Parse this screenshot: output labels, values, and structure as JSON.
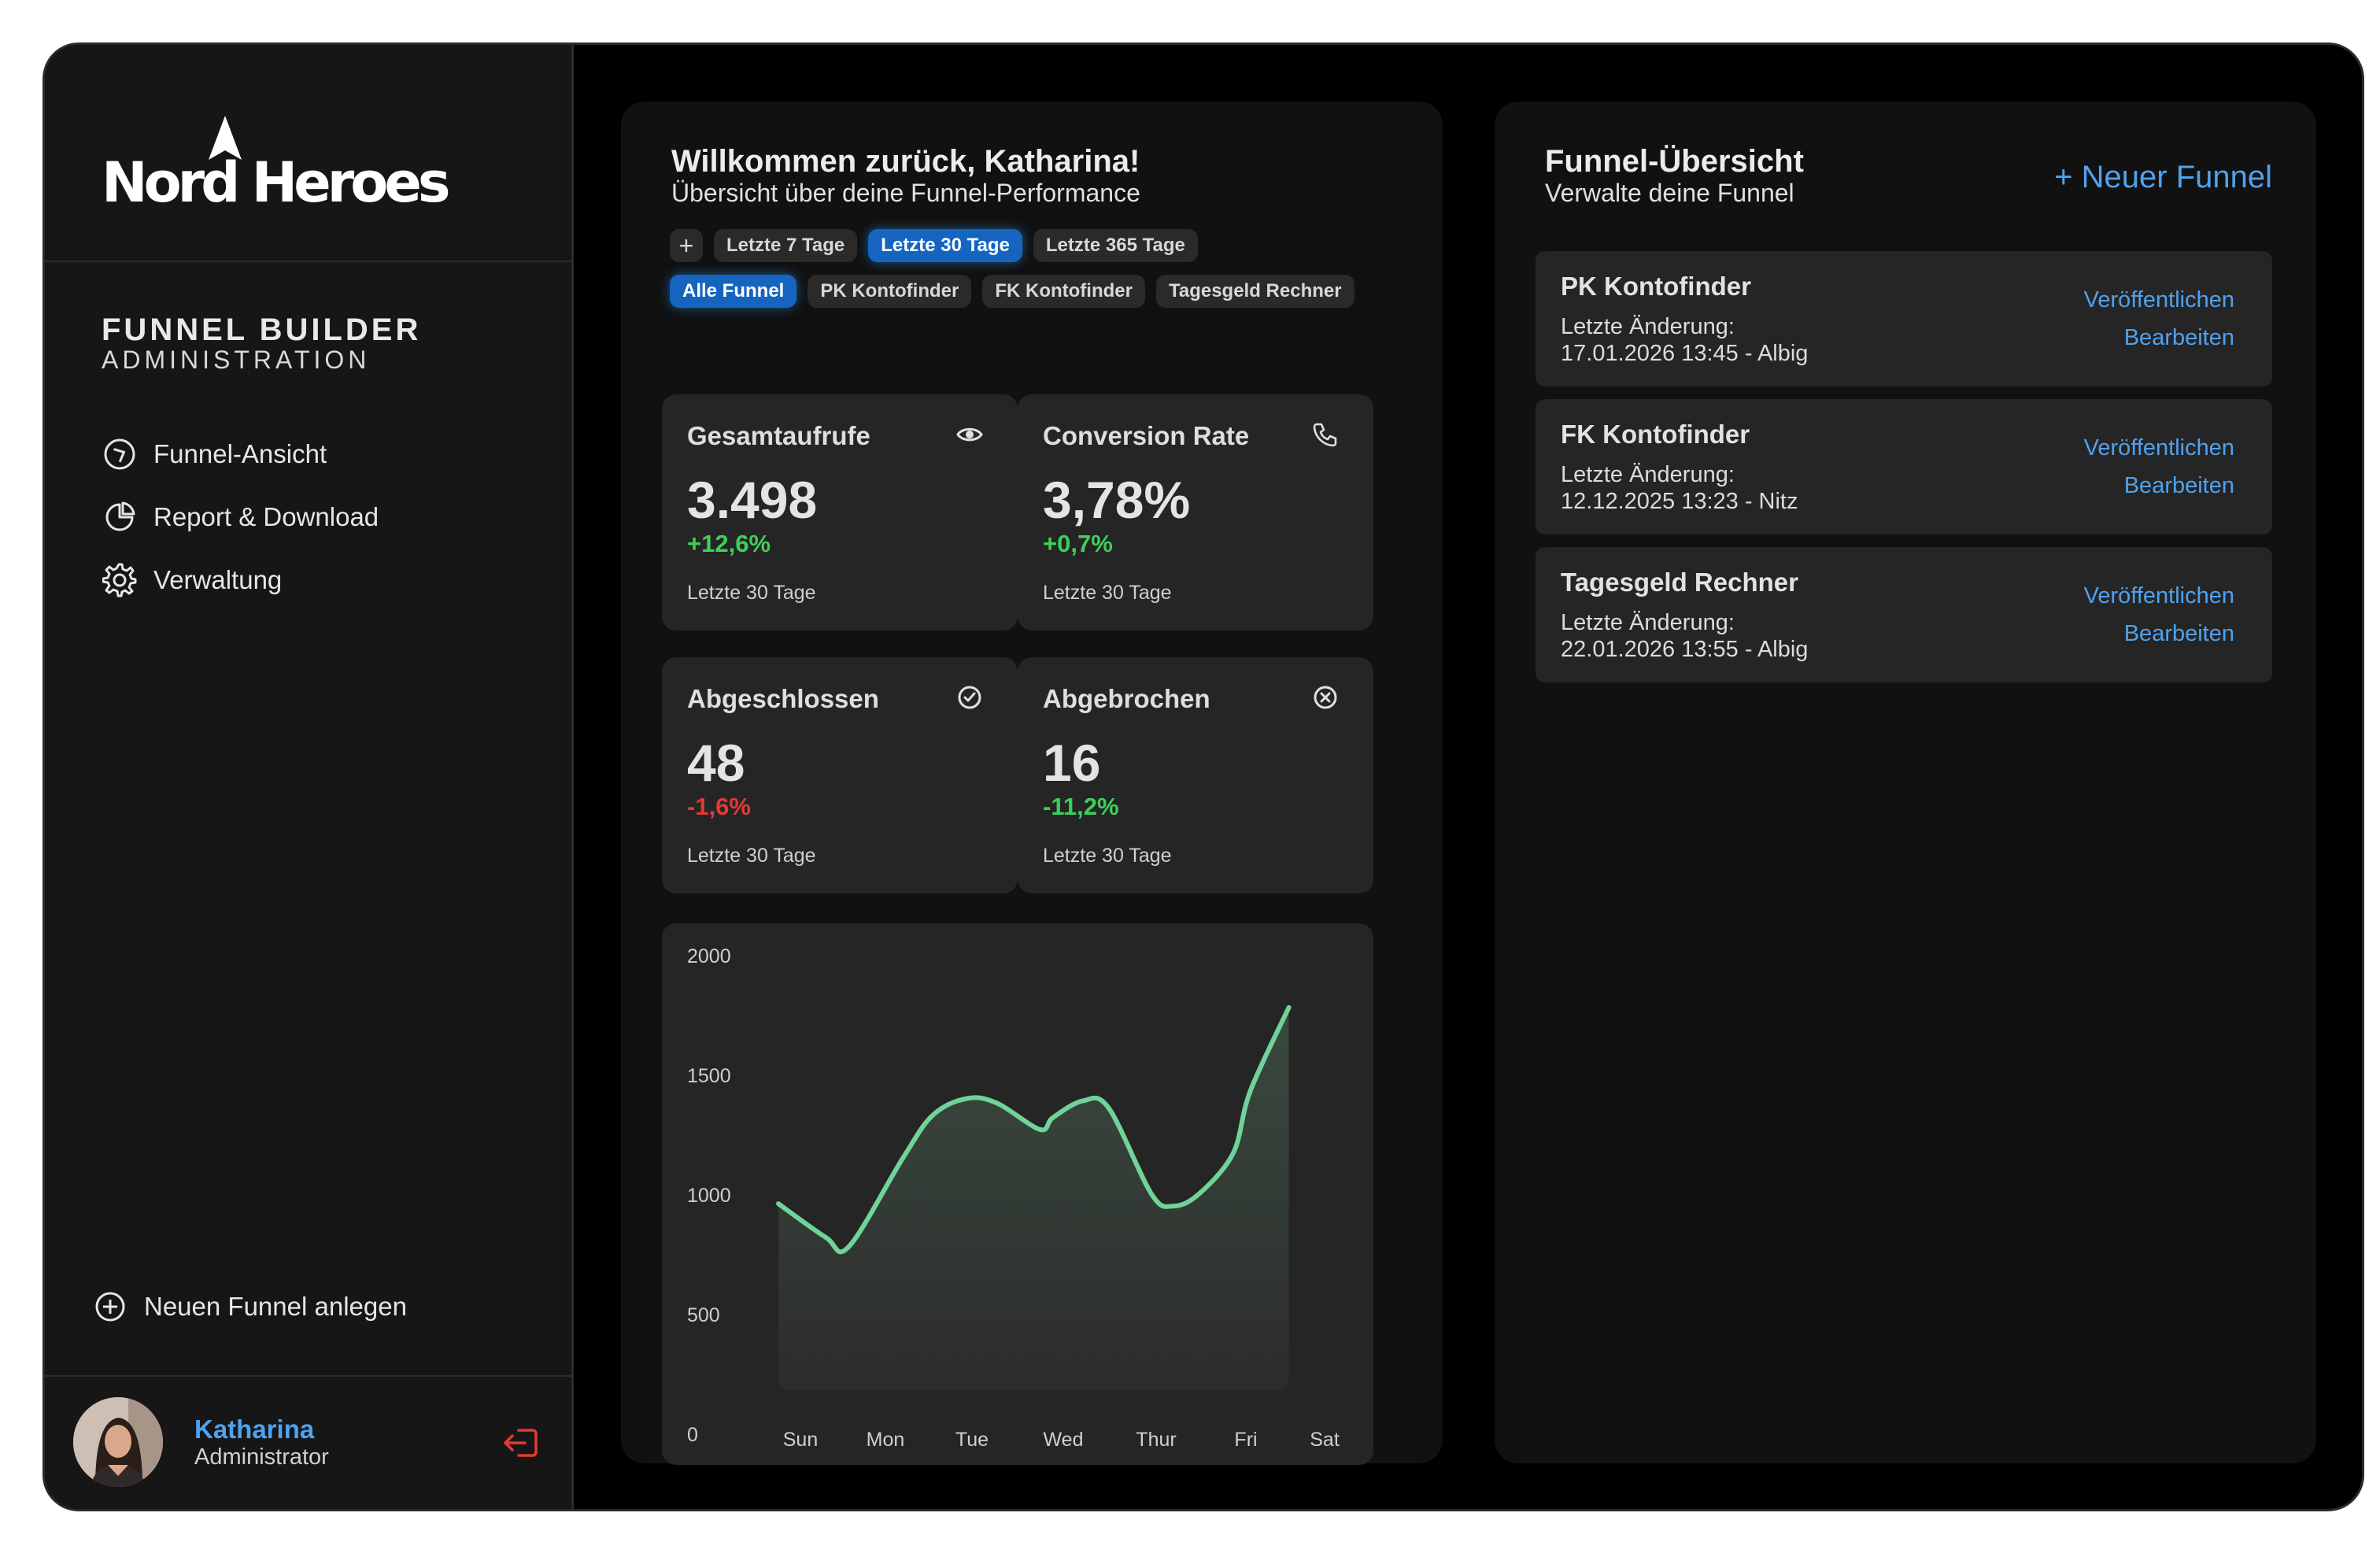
{
  "brand": {
    "logo_text": "Nord Heroes",
    "title": "FUNNEL BUILDER",
    "subtitle": "ADMINISTRATION"
  },
  "sidebar": {
    "items": [
      {
        "label": "Funnel-Ansicht",
        "icon": "compass-icon"
      },
      {
        "label": "Report & Download",
        "icon": "pie-chart-icon"
      },
      {
        "label": "Verwaltung",
        "icon": "gear-icon"
      }
    ],
    "new_funnel_label": "Neuen Funnel anlegen"
  },
  "user": {
    "name": "Katharina",
    "role": "Administrator"
  },
  "dashboard": {
    "welcome": "Willkommen zurück, Katharina!",
    "subtitle": "Übersicht über deine Funnel-Performance",
    "period_chips": [
      {
        "label": "Letzte 7 Tage",
        "active": false
      },
      {
        "label": "Letzte 30 Tage",
        "active": true
      },
      {
        "label": "Letzte 365 Tage",
        "active": false
      }
    ],
    "funnel_chips": [
      {
        "label": "Alle Funnel",
        "active": true
      },
      {
        "label": "PK Kontofinder",
        "active": false
      },
      {
        "label": "FK Kontofinder",
        "active": false
      },
      {
        "label": "Tagesgeld Rechner",
        "active": false
      }
    ],
    "stats": [
      {
        "title": "Gesamtaufrufe",
        "value": "3.498",
        "delta": "+12,6%",
        "trend": "up",
        "period": "Letzte 30 Tage",
        "icon": "eye-icon"
      },
      {
        "title": "Conversion Rate",
        "value": "3,78%",
        "delta": "+0,7%",
        "trend": "up",
        "period": "Letzte 30 Tage",
        "icon": "phone-icon"
      },
      {
        "title": "Abgeschlossen",
        "value": "48",
        "delta": "-1,6%",
        "trend": "down",
        "period": "Letzte 30 Tage",
        "icon": "check-circle-icon"
      },
      {
        "title": "Abgebrochen",
        "value": "16",
        "delta": "-11,2%",
        "trend": "up",
        "period": "Letzte 30 Tage",
        "icon": "x-circle-icon"
      }
    ]
  },
  "chart_data": {
    "type": "area",
    "categories": [
      "Sun",
      "Mon",
      "Tue",
      "Wed",
      "Thur",
      "Fri",
      "Sat"
    ],
    "x": [
      0,
      0.55,
      0.82,
      1.45,
      1.8,
      2.2,
      2.55,
      3.05,
      3.2,
      3.55,
      3.85,
      4.35,
      4.6,
      4.9,
      5.3,
      5.5,
      5.95
    ],
    "values": [
      960,
      820,
      780,
      1150,
      1330,
      1400,
      1380,
      1270,
      1320,
      1390,
      1360,
      1000,
      950,
      1000,
      1170,
      1430,
      1780
    ],
    "yticks": [
      0,
      500,
      1000,
      1500,
      2000
    ],
    "ylim": [
      0,
      2000
    ],
    "colors": {
      "line": "#6fd39a",
      "fill": "#3a4a3f"
    }
  },
  "overview": {
    "title": "Funnel-Übersicht",
    "subtitle": "Verwalte deine Funnel",
    "new_button": "+ Neuer Funnel",
    "change_label": "Letzte Änderung:",
    "publish_label": "Veröffentlichen",
    "edit_label": "Bearbeiten",
    "funnels": [
      {
        "name": "PK Kontofinder",
        "changed": "17.01.2026 13:45 - Albig"
      },
      {
        "name": "FK Kontofinder",
        "changed": "12.12.2025 13:23 - Nitz"
      },
      {
        "name": "Tagesgeld Rechner",
        "changed": "22.01.2026 13:55 - Albig"
      }
    ]
  }
}
